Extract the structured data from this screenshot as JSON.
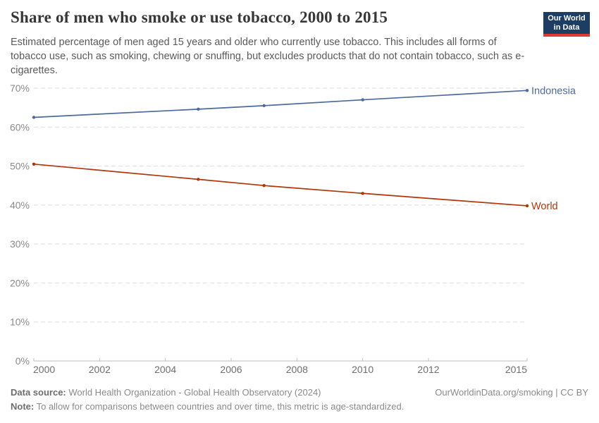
{
  "header": {
    "title": "Share of men who smoke or use tobacco, 2000 to 2015",
    "subtitle": "Estimated percentage of men aged 15 years and older who currently use tobacco. This includes all forms of tobacco use, such as smoking, chewing or snuffing, but excludes products that do not contain tobacco, such as e-cigarettes.",
    "logo": {
      "line1": "Our World",
      "line2": "in Data",
      "bg_color": "#1d3d63",
      "accent_color": "#e0392f"
    }
  },
  "chart_data": {
    "type": "line",
    "x": [
      2000,
      2005,
      2007,
      2010,
      2015
    ],
    "series": [
      {
        "name": "Indonesia",
        "color": "#4c6a9c",
        "values": [
          62.5,
          64.6,
          65.5,
          67.0,
          69.4
        ]
      },
      {
        "name": "World",
        "color": "#b13507",
        "values": [
          50.5,
          46.6,
          45.0,
          43.0,
          39.8
        ]
      }
    ],
    "title": "Share of men who smoke or use tobacco, 2000 to 2015",
    "xlabel": "",
    "ylabel": "",
    "xlim": [
      2000,
      2015
    ],
    "ylim": [
      0,
      70
    ],
    "xticks": [
      2000,
      2002,
      2004,
      2006,
      2008,
      2010,
      2012,
      2015
    ],
    "yticks": [
      0,
      10,
      20,
      30,
      40,
      50,
      60,
      70
    ],
    "ytick_suffix": "%",
    "grid": "horizontal-dashed",
    "legend_position": "right-of-line-end",
    "marker_years": [
      2000,
      2005,
      2007,
      2010,
      2015
    ]
  },
  "footer": {
    "datasource_label": "Data source:",
    "datasource_text": " World Health Organization - Global Health Observatory (2024)",
    "attribution": "OurWorldinData.org/smoking | CC BY",
    "note_label": "Note:",
    "note_text": " To allow for comparisons between countries and over time, this metric is age-standardized."
  }
}
